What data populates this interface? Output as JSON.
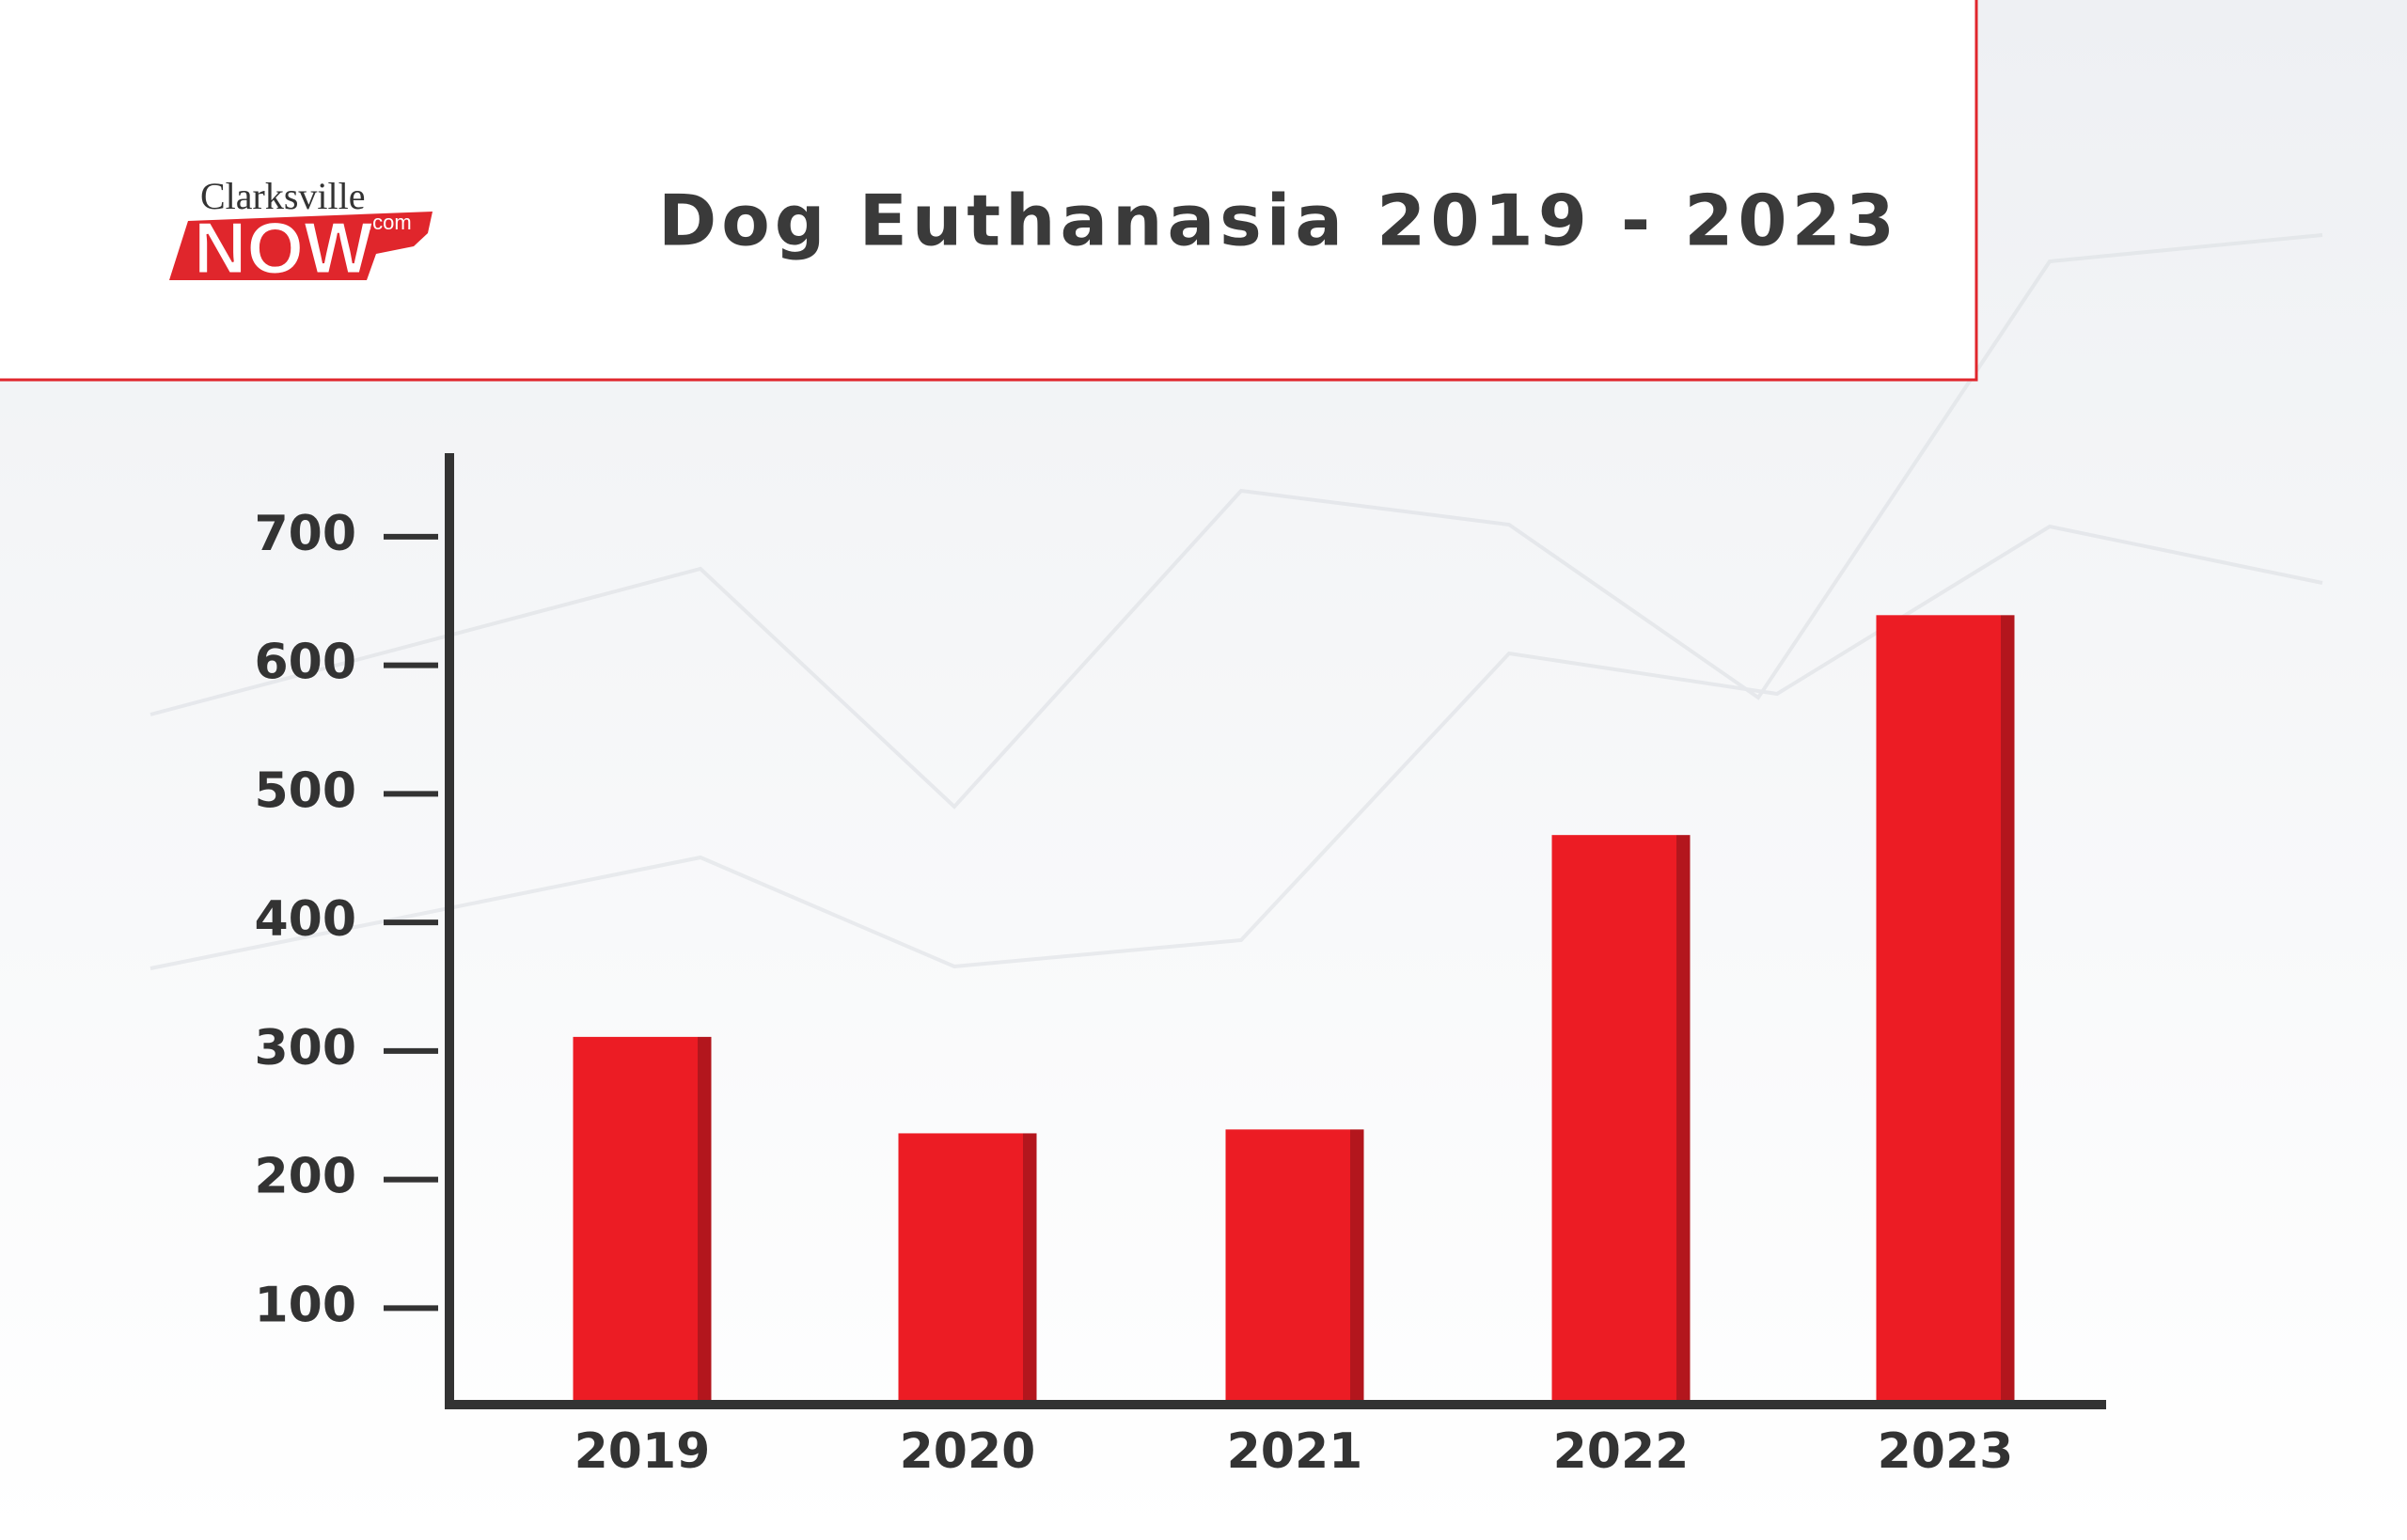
{
  "logo": {
    "name": "Clarksville",
    "main": "NOW",
    "suffix": ".com"
  },
  "chart_data": {
    "type": "bar",
    "title": "Dog Euthanasia 2019 - 2023",
    "categories": [
      "2019",
      "2020",
      "2021",
      "2022",
      "2023"
    ],
    "values": [
      311,
      236,
      239,
      468,
      639
    ],
    "color": "#ec1c24",
    "ylim": [
      25,
      765
    ],
    "yticks": [
      100,
      200,
      300,
      400,
      500,
      600,
      700
    ],
    "grid": false
  }
}
